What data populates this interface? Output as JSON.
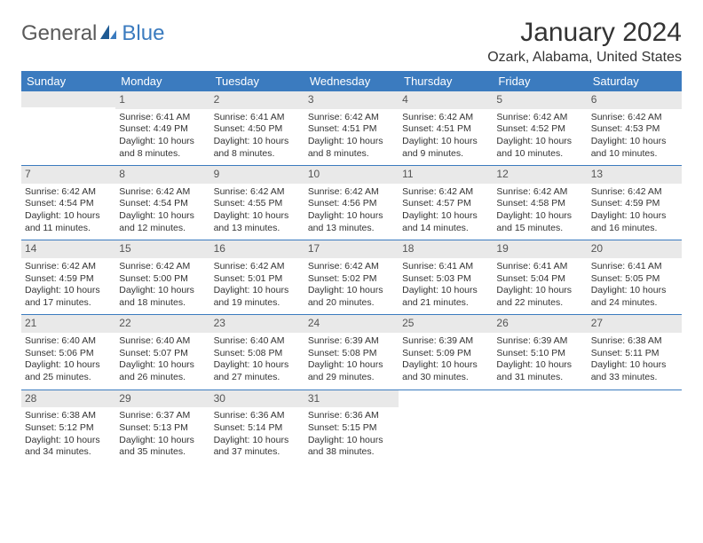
{
  "logo": {
    "text1": "General",
    "text2": "Blue"
  },
  "title": "January 2024",
  "location": "Ozark, Alabama, United States",
  "colors": {
    "header_bg": "#3b7bbf",
    "header_text": "#ffffff",
    "daynum_bg": "#e9e9e9",
    "text": "#333333"
  },
  "daysOfWeek": [
    "Sunday",
    "Monday",
    "Tuesday",
    "Wednesday",
    "Thursday",
    "Friday",
    "Saturday"
  ],
  "weeks": [
    [
      null,
      {
        "n": "1",
        "sr": "6:41 AM",
        "ss": "4:49 PM",
        "dl": "10 hours and 8 minutes."
      },
      {
        "n": "2",
        "sr": "6:41 AM",
        "ss": "4:50 PM",
        "dl": "10 hours and 8 minutes."
      },
      {
        "n": "3",
        "sr": "6:42 AM",
        "ss": "4:51 PM",
        "dl": "10 hours and 8 minutes."
      },
      {
        "n": "4",
        "sr": "6:42 AM",
        "ss": "4:51 PM",
        "dl": "10 hours and 9 minutes."
      },
      {
        "n": "5",
        "sr": "6:42 AM",
        "ss": "4:52 PM",
        "dl": "10 hours and 10 minutes."
      },
      {
        "n": "6",
        "sr": "6:42 AM",
        "ss": "4:53 PM",
        "dl": "10 hours and 10 minutes."
      }
    ],
    [
      {
        "n": "7",
        "sr": "6:42 AM",
        "ss": "4:54 PM",
        "dl": "10 hours and 11 minutes."
      },
      {
        "n": "8",
        "sr": "6:42 AM",
        "ss": "4:54 PM",
        "dl": "10 hours and 12 minutes."
      },
      {
        "n": "9",
        "sr": "6:42 AM",
        "ss": "4:55 PM",
        "dl": "10 hours and 13 minutes."
      },
      {
        "n": "10",
        "sr": "6:42 AM",
        "ss": "4:56 PM",
        "dl": "10 hours and 13 minutes."
      },
      {
        "n": "11",
        "sr": "6:42 AM",
        "ss": "4:57 PM",
        "dl": "10 hours and 14 minutes."
      },
      {
        "n": "12",
        "sr": "6:42 AM",
        "ss": "4:58 PM",
        "dl": "10 hours and 15 minutes."
      },
      {
        "n": "13",
        "sr": "6:42 AM",
        "ss": "4:59 PM",
        "dl": "10 hours and 16 minutes."
      }
    ],
    [
      {
        "n": "14",
        "sr": "6:42 AM",
        "ss": "4:59 PM",
        "dl": "10 hours and 17 minutes."
      },
      {
        "n": "15",
        "sr": "6:42 AM",
        "ss": "5:00 PM",
        "dl": "10 hours and 18 minutes."
      },
      {
        "n": "16",
        "sr": "6:42 AM",
        "ss": "5:01 PM",
        "dl": "10 hours and 19 minutes."
      },
      {
        "n": "17",
        "sr": "6:42 AM",
        "ss": "5:02 PM",
        "dl": "10 hours and 20 minutes."
      },
      {
        "n": "18",
        "sr": "6:41 AM",
        "ss": "5:03 PM",
        "dl": "10 hours and 21 minutes."
      },
      {
        "n": "19",
        "sr": "6:41 AM",
        "ss": "5:04 PM",
        "dl": "10 hours and 22 minutes."
      },
      {
        "n": "20",
        "sr": "6:41 AM",
        "ss": "5:05 PM",
        "dl": "10 hours and 24 minutes."
      }
    ],
    [
      {
        "n": "21",
        "sr": "6:40 AM",
        "ss": "5:06 PM",
        "dl": "10 hours and 25 minutes."
      },
      {
        "n": "22",
        "sr": "6:40 AM",
        "ss": "5:07 PM",
        "dl": "10 hours and 26 minutes."
      },
      {
        "n": "23",
        "sr": "6:40 AM",
        "ss": "5:08 PM",
        "dl": "10 hours and 27 minutes."
      },
      {
        "n": "24",
        "sr": "6:39 AM",
        "ss": "5:08 PM",
        "dl": "10 hours and 29 minutes."
      },
      {
        "n": "25",
        "sr": "6:39 AM",
        "ss": "5:09 PM",
        "dl": "10 hours and 30 minutes."
      },
      {
        "n": "26",
        "sr": "6:39 AM",
        "ss": "5:10 PM",
        "dl": "10 hours and 31 minutes."
      },
      {
        "n": "27",
        "sr": "6:38 AM",
        "ss": "5:11 PM",
        "dl": "10 hours and 33 minutes."
      }
    ],
    [
      {
        "n": "28",
        "sr": "6:38 AM",
        "ss": "5:12 PM",
        "dl": "10 hours and 34 minutes."
      },
      {
        "n": "29",
        "sr": "6:37 AM",
        "ss": "5:13 PM",
        "dl": "10 hours and 35 minutes."
      },
      {
        "n": "30",
        "sr": "6:36 AM",
        "ss": "5:14 PM",
        "dl": "10 hours and 37 minutes."
      },
      {
        "n": "31",
        "sr": "6:36 AM",
        "ss": "5:15 PM",
        "dl": "10 hours and 38 minutes."
      },
      null,
      null,
      null
    ]
  ],
  "labels": {
    "sunrise": "Sunrise:",
    "sunset": "Sunset:",
    "daylight": "Daylight:"
  }
}
